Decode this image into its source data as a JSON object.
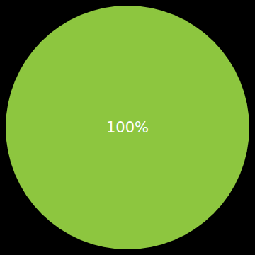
{
  "chart_data": {
    "type": "pie",
    "values": [
      100
    ],
    "colors": [
      "#8dc63f"
    ],
    "data_labels": true,
    "value_labels": [
      "100%"
    ]
  }
}
